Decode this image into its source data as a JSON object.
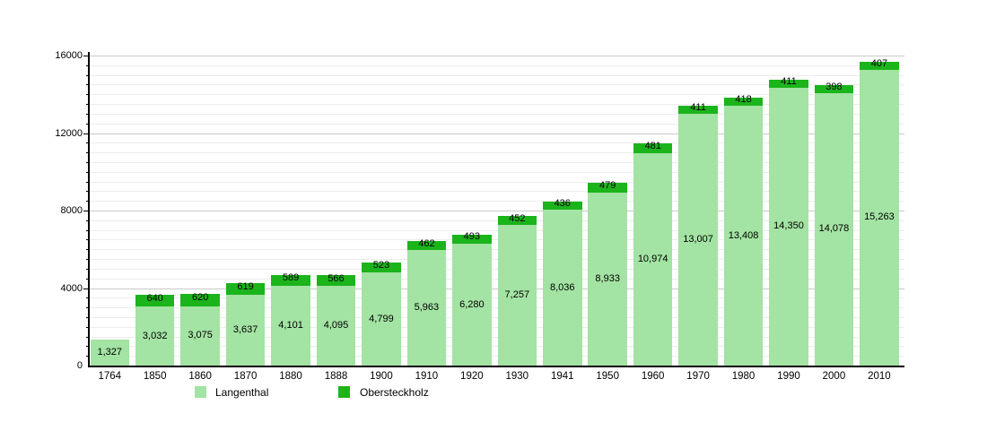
{
  "chart_data": {
    "type": "bar",
    "stacked": true,
    "title": "",
    "xlabel": "",
    "ylabel": "",
    "categories": [
      "1764",
      "1850",
      "1860",
      "1870",
      "1880",
      "1888",
      "1900",
      "1910",
      "1920",
      "1930",
      "1941",
      "1950",
      "1960",
      "1970",
      "1980",
      "1990",
      "2000",
      "2010"
    ],
    "series": [
      {
        "name": "Langenthal",
        "color": "#a3e3a3",
        "values": [
          1327,
          3032,
          3075,
          3637,
          4101,
          4095,
          4799,
          5963,
          6280,
          7257,
          8036,
          8933,
          10974,
          13007,
          13408,
          14350,
          14078,
          15263
        ]
      },
      {
        "name": "Obersteckholz",
        "color": "#1bb41b",
        "values": [
          null,
          640,
          620,
          619,
          589,
          566,
          523,
          462,
          493,
          452,
          436,
          479,
          481,
          411,
          418,
          411,
          398,
          407
        ]
      }
    ],
    "ylim": [
      0,
      16000
    ],
    "ytick_major": [
      0,
      4000,
      8000,
      12000,
      16000
    ],
    "ytick_minor_step": 500,
    "grid": true,
    "legend_position": "bottom"
  },
  "legend": {
    "items": [
      {
        "label": "Langenthal",
        "color": "#a3e3a3"
      },
      {
        "label": "Obersteckholz",
        "color": "#1bb41b"
      }
    ]
  }
}
